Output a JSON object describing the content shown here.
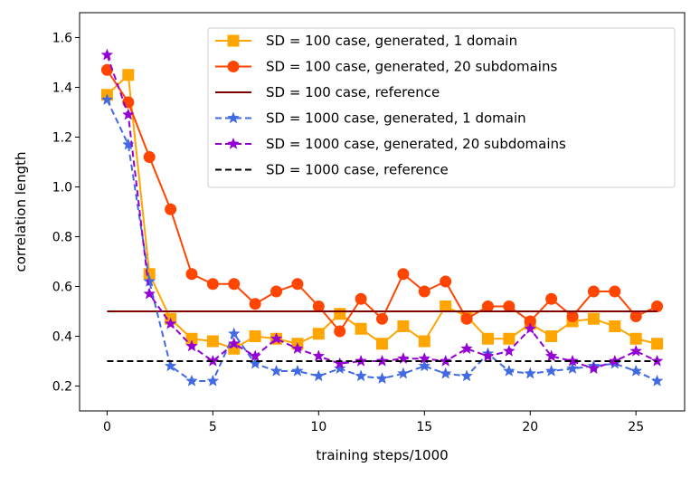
{
  "chart_data": {
    "type": "line",
    "xlabel": "training steps/1000",
    "ylabel": "correlation length",
    "xlim": [
      -1.3,
      27.3
    ],
    "ylim": [
      0.1,
      1.7
    ],
    "xticks": [
      0,
      5,
      10,
      15,
      20,
      25
    ],
    "yticks": [
      0.2,
      0.4,
      0.6,
      0.8,
      1.0,
      1.2,
      1.4,
      1.6
    ],
    "ytick_labels": [
      "0.2",
      "0.4",
      "0.6",
      "0.8",
      "1.0",
      "1.2",
      "1.4",
      "1.6"
    ],
    "legend_position": "top-right",
    "x": [
      0,
      1,
      2,
      3,
      4,
      5,
      6,
      7,
      8,
      9,
      10,
      11,
      12,
      13,
      14,
      15,
      16,
      17,
      18,
      19,
      20,
      21,
      22,
      23,
      24,
      25,
      26
    ],
    "series": [
      {
        "name": "SD = 100 case, generated, 1 domain",
        "color": "#FFA500",
        "dash": "solid",
        "marker": "square",
        "values": [
          1.37,
          1.45,
          0.65,
          0.47,
          0.39,
          0.38,
          0.35,
          0.4,
          0.39,
          0.37,
          0.41,
          0.49,
          0.43,
          0.37,
          0.44,
          0.38,
          0.52,
          0.48,
          0.39,
          0.39,
          0.45,
          0.4,
          0.46,
          0.47,
          0.44,
          0.39,
          0.37
        ]
      },
      {
        "name": "SD = 100 case, generated, 20 subdomains",
        "color": "#FF4500",
        "dash": "solid",
        "marker": "circle",
        "values": [
          1.47,
          1.34,
          1.12,
          0.91,
          0.65,
          0.61,
          0.61,
          0.53,
          0.58,
          0.61,
          0.52,
          0.42,
          0.55,
          0.47,
          0.65,
          0.58,
          0.62,
          0.47,
          0.52,
          0.52,
          0.46,
          0.55,
          0.48,
          0.58,
          0.58,
          0.48,
          0.52
        ]
      },
      {
        "name": "SD = 100 case, reference",
        "color": "#800000",
        "dash": "solid",
        "marker": "none",
        "type": "hline",
        "value": 0.5
      },
      {
        "name": "SD = 1000 case, generated, 1 domain",
        "color": "#4169E1",
        "dash": "dashed",
        "marker": "star",
        "values": [
          1.35,
          1.17,
          0.62,
          0.28,
          0.22,
          0.22,
          0.41,
          0.29,
          0.26,
          0.26,
          0.24,
          0.27,
          0.24,
          0.23,
          0.25,
          0.28,
          0.25,
          0.24,
          0.33,
          0.26,
          0.25,
          0.26,
          0.27,
          0.28,
          0.29,
          0.26,
          0.22
        ]
      },
      {
        "name": "SD = 1000 case, generated, 20 subdomains",
        "color": "#9400D3",
        "dash": "dashed",
        "marker": "star",
        "values": [
          1.53,
          1.29,
          0.57,
          0.45,
          0.36,
          0.3,
          0.37,
          0.32,
          0.39,
          0.35,
          0.32,
          0.29,
          0.3,
          0.3,
          0.31,
          0.31,
          0.3,
          0.35,
          0.32,
          0.34,
          0.43,
          0.32,
          0.3,
          0.27,
          0.3,
          0.34,
          0.3
        ]
      },
      {
        "name": "SD = 1000 case, reference",
        "color": "#000000",
        "dash": "dashed",
        "marker": "none",
        "type": "hline",
        "value": 0.3
      }
    ]
  }
}
